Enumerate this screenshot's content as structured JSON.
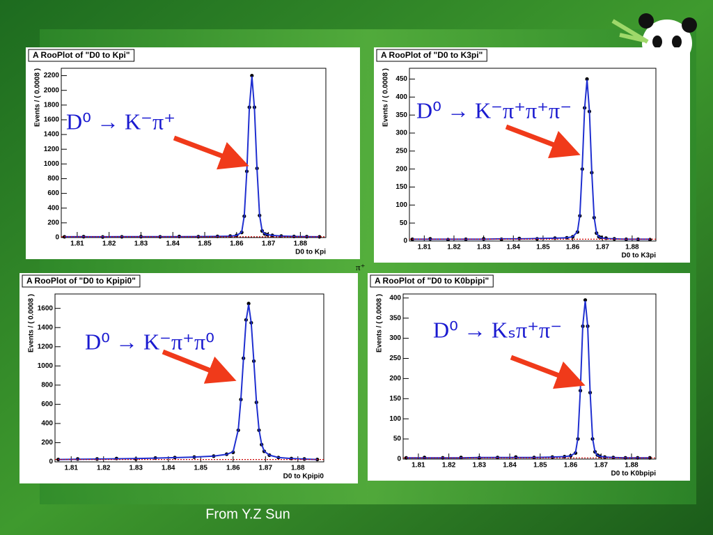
{
  "chart_data": [
    {
      "type": "scatter",
      "title": "A RooPlot of \"D0 to Kpi\"",
      "x_label": "D0 to Kpi",
      "y_label": "Events / ( 0.0008 )",
      "annotation": "D⁰ → K⁻π⁺",
      "x": [
        1.806,
        1.812,
        1.818,
        1.824,
        1.83,
        1.836,
        1.842,
        1.848,
        1.854,
        1.858,
        1.86,
        1.8616,
        1.8624,
        1.8632,
        1.864,
        1.8648,
        1.8656,
        1.8664,
        1.8672,
        1.868,
        1.8688,
        1.8696,
        1.8712,
        1.874,
        1.878,
        1.882,
        1.886
      ],
      "series": [
        {
          "name": "data",
          "mode": "markers",
          "color": "#000000",
          "values": [
            10,
            12,
            8,
            10,
            12,
            10,
            14,
            12,
            16,
            20,
            30,
            70,
            290,
            900,
            1770,
            2200,
            1770,
            940,
            300,
            90,
            50,
            40,
            30,
            20,
            15,
            12,
            10
          ]
        },
        {
          "name": "fit",
          "mode": "line",
          "color": "#1f2fd0",
          "values": [
            10,
            11,
            10,
            11,
            11,
            11,
            12,
            13,
            15,
            19,
            28,
            72,
            295,
            905,
            1760,
            2190,
            1760,
            935,
            305,
            95,
            52,
            40,
            29,
            20,
            15,
            12,
            10
          ]
        },
        {
          "name": "background",
          "mode": "dotted",
          "color": "#cc0000",
          "x": [
            1.805,
            1.888
          ],
          "values": [
            10,
            10
          ]
        }
      ],
      "xlim": [
        1.805,
        1.888
      ],
      "xticks": [
        1.81,
        1.82,
        1.83,
        1.84,
        1.85,
        1.86,
        1.87,
        1.88
      ],
      "ylim": [
        0,
        2300
      ],
      "yticks": [
        0,
        200,
        400,
        600,
        800,
        1000,
        1200,
        1400,
        1600,
        1800,
        2000,
        2200
      ]
    },
    {
      "type": "scatter",
      "title": "A RooPlot of \"D0 to K3pi\"",
      "x_label": "D0 to K3pi",
      "y_label": "Events / ( 0.0008 )",
      "annotation": "D⁰ → K⁻π⁺π⁺π⁻",
      "x": [
        1.806,
        1.812,
        1.818,
        1.824,
        1.83,
        1.836,
        1.842,
        1.848,
        1.854,
        1.858,
        1.86,
        1.8616,
        1.8624,
        1.8632,
        1.864,
        1.8648,
        1.8656,
        1.8664,
        1.8672,
        1.868,
        1.8688,
        1.8696,
        1.8712,
        1.874,
        1.878,
        1.882,
        1.886
      ],
      "series": [
        {
          "name": "data",
          "mode": "markers",
          "color": "#000000",
          "values": [
            5,
            6,
            4,
            5,
            6,
            5,
            7,
            6,
            8,
            9,
            12,
            25,
            70,
            200,
            370,
            450,
            360,
            190,
            65,
            22,
            12,
            10,
            8,
            6,
            5,
            5,
            4
          ]
        },
        {
          "name": "fit",
          "mode": "line",
          "color": "#1f2fd0",
          "values": [
            5,
            5,
            5,
            5,
            5,
            6,
            6,
            7,
            8,
            9,
            12,
            26,
            72,
            205,
            368,
            448,
            362,
            192,
            66,
            23,
            12,
            9,
            7,
            6,
            5,
            5,
            5
          ]
        },
        {
          "name": "background",
          "mode": "dotted",
          "color": "#cc0000",
          "x": [
            1.805,
            1.888
          ],
          "values": [
            5,
            5
          ]
        }
      ],
      "xlim": [
        1.805,
        1.888
      ],
      "xticks": [
        1.81,
        1.82,
        1.83,
        1.84,
        1.85,
        1.86,
        1.87,
        1.88
      ],
      "ylim": [
        0,
        480
      ],
      "yticks": [
        0,
        50,
        100,
        150,
        200,
        250,
        300,
        350,
        400,
        450
      ]
    },
    {
      "type": "scatter",
      "title": "A RooPlot of \"D0 to Kpipi0\"",
      "x_label": "D0 to Kpipi0",
      "y_label": "Events / ( 0.0008 )",
      "annotation": "D⁰ → K⁻π⁺π⁰",
      "x": [
        1.806,
        1.812,
        1.818,
        1.824,
        1.83,
        1.836,
        1.842,
        1.848,
        1.854,
        1.858,
        1.86,
        1.8616,
        1.8624,
        1.8632,
        1.864,
        1.8648,
        1.8656,
        1.8664,
        1.8672,
        1.868,
        1.8688,
        1.8696,
        1.8712,
        1.874,
        1.878,
        1.882,
        1.886
      ],
      "series": [
        {
          "name": "data",
          "mode": "markers",
          "color": "#000000",
          "values": [
            25,
            30,
            30,
            35,
            30,
            40,
            45,
            50,
            60,
            80,
            100,
            330,
            650,
            1080,
            1480,
            1650,
            1450,
            1050,
            620,
            330,
            180,
            110,
            70,
            45,
            35,
            30,
            25
          ]
        },
        {
          "name": "fit",
          "mode": "line",
          "color": "#1f2fd0",
          "values": [
            25,
            27,
            29,
            32,
            35,
            39,
            44,
            50,
            60,
            78,
            105,
            335,
            648,
            1075,
            1470,
            1640,
            1448,
            1055,
            625,
            335,
            185,
            112,
            70,
            46,
            35,
            29,
            25
          ]
        },
        {
          "name": "background",
          "mode": "dotted",
          "color": "#cc0000",
          "x": [
            1.805,
            1.888
          ],
          "values": [
            25,
            25
          ]
        }
      ],
      "xlim": [
        1.805,
        1.888
      ],
      "xticks": [
        1.81,
        1.82,
        1.83,
        1.84,
        1.85,
        1.86,
        1.87,
        1.88
      ],
      "ylim": [
        0,
        1750
      ],
      "yticks": [
        0,
        200,
        400,
        600,
        800,
        1000,
        1200,
        1400,
        1600
      ]
    },
    {
      "type": "scatter",
      "title": "A RooPlot of \"D0 to K0bpipi\"",
      "x_label": "D0 to K0bpipi",
      "y_label": "Events / ( 0.0008 )",
      "annotation": "D⁰ → Kₛπ⁺π⁻",
      "x": [
        1.806,
        1.812,
        1.818,
        1.824,
        1.83,
        1.836,
        1.842,
        1.848,
        1.854,
        1.858,
        1.86,
        1.8616,
        1.8624,
        1.8632,
        1.864,
        1.8648,
        1.8656,
        1.8664,
        1.8672,
        1.868,
        1.8688,
        1.8696,
        1.8712,
        1.874,
        1.878,
        1.882,
        1.886
      ],
      "series": [
        {
          "name": "data",
          "mode": "markers",
          "color": "#000000",
          "values": [
            3,
            4,
            3,
            4,
            3,
            4,
            5,
            4,
            5,
            6,
            8,
            15,
            50,
            170,
            330,
            395,
            330,
            165,
            50,
            18,
            10,
            7,
            5,
            4,
            3,
            3,
            3
          ]
        },
        {
          "name": "fit",
          "mode": "line",
          "color": "#1f2fd0",
          "values": [
            3,
            3,
            3,
            3,
            4,
            4,
            4,
            4,
            5,
            6,
            8,
            16,
            52,
            172,
            332,
            393,
            331,
            167,
            52,
            18,
            9,
            7,
            5,
            4,
            3,
            3,
            3
          ]
        },
        {
          "name": "background",
          "mode": "dotted",
          "color": "#cc0000",
          "x": [
            1.805,
            1.888
          ],
          "values": [
            3,
            3
          ]
        }
      ],
      "xlim": [
        1.805,
        1.888
      ],
      "xticks": [
        1.81,
        1.82,
        1.83,
        1.84,
        1.85,
        1.86,
        1.87,
        1.88
      ],
      "ylim": [
        0,
        410
      ],
      "yticks": [
        0,
        50,
        100,
        150,
        200,
        250,
        300,
        350,
        400
      ]
    }
  ],
  "stray_label": "π⁺",
  "footer": "From Y.Z Sun"
}
